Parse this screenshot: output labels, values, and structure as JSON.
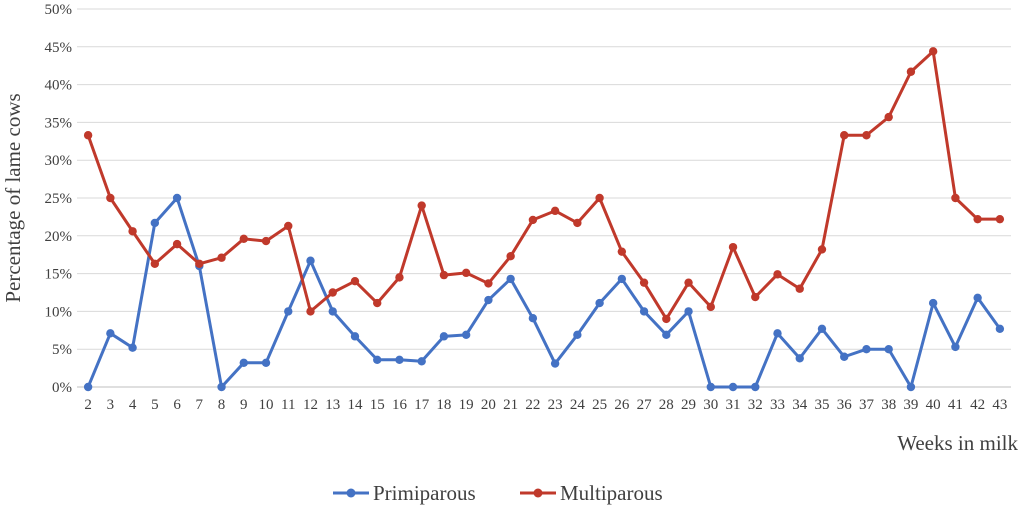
{
  "chart_data": {
    "type": "line",
    "title": "",
    "xlabel": "Weeks in milk",
    "ylabel": "Percentage of lame cows",
    "ylim": [
      0,
      50
    ],
    "y_tick_step": 5,
    "y_tick_suffix": "%",
    "grid": "horizontal",
    "legend_position": "bottom",
    "x": [
      "2",
      "3",
      "4",
      "5",
      "6",
      "7",
      "8",
      "9",
      "10",
      "11",
      "12",
      "13",
      "14",
      "15",
      "16",
      "17",
      "18",
      "19",
      "20",
      "21",
      "22",
      "23",
      "24",
      "25",
      "26",
      "27",
      "28",
      "29",
      "30",
      "31",
      "32",
      "33",
      "34",
      "35",
      "36",
      "37",
      "38",
      "39",
      "40",
      "41",
      "42",
      "43"
    ],
    "series": [
      {
        "name": "Primiparous",
        "color": "#4472C4",
        "values": [
          0,
          7.1,
          5.2,
          21.7,
          25,
          16,
          0,
          3.2,
          3.2,
          10,
          16.7,
          10,
          6.7,
          3.6,
          3.6,
          3.4,
          6.7,
          6.9,
          11.5,
          14.3,
          9.1,
          3.1,
          6.9,
          11.1,
          14.3,
          10,
          6.9,
          10,
          0,
          0,
          0,
          7.1,
          3.8,
          7.7,
          4,
          5,
          5,
          0,
          11.1,
          5.3,
          11.8,
          7.7
        ]
      },
      {
        "name": "Multiparous",
        "color": "#C0392B",
        "values": [
          33.3,
          25,
          20.6,
          16.3,
          18.9,
          16.3,
          17.1,
          19.6,
          19.3,
          21.3,
          10,
          12.5,
          14,
          11.1,
          14.5,
          24,
          14.8,
          15.1,
          13.7,
          17.3,
          22.1,
          23.3,
          21.7,
          25,
          17.9,
          13.8,
          9,
          13.8,
          10.6,
          18.5,
          11.9,
          14.9,
          13,
          18.2,
          33.3,
          33.3,
          35.7,
          41.7,
          44.4,
          25,
          22.2,
          22.2
        ]
      }
    ]
  }
}
